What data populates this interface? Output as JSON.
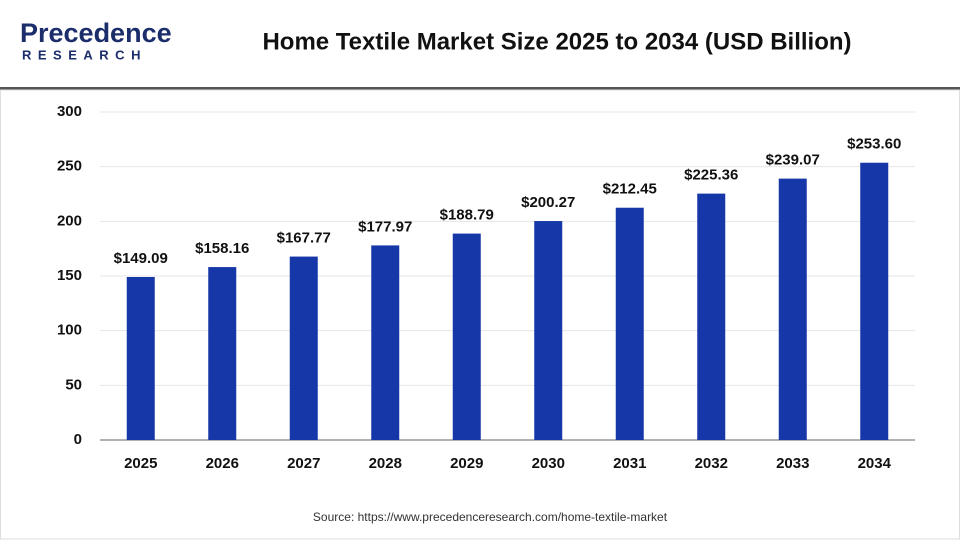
{
  "logo": {
    "name": "Precedence",
    "tagline": "RESEARCH"
  },
  "chart_data": {
    "type": "bar",
    "title": "Home Textile Market Size 2025 to 2034 (USD Billion)",
    "categories": [
      "2025",
      "2026",
      "2027",
      "2028",
      "2029",
      "2030",
      "2031",
      "2032",
      "2033",
      "2034"
    ],
    "values": [
      149.09,
      158.16,
      167.77,
      177.97,
      188.79,
      200.27,
      212.45,
      225.36,
      239.07,
      253.6
    ],
    "value_labels": [
      "$149.09",
      "$158.16",
      "$167.77",
      "$177.97",
      "$188.79",
      "$200.27",
      "$212.45",
      "$225.36",
      "$239.07",
      "$253.60"
    ],
    "color": "#1537a8",
    "ylim": [
      0,
      300
    ],
    "yticks": [
      0,
      50,
      100,
      150,
      200,
      250,
      300
    ],
    "grid": true,
    "source": "Source: https://www.precedenceresearch.com/home-textile-market"
  }
}
